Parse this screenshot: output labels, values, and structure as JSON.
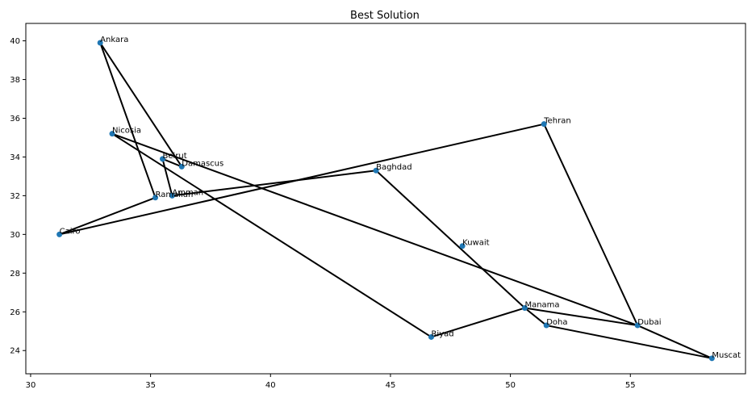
{
  "chart_data": {
    "type": "scatter",
    "title": "Best Solution",
    "xlabel": "",
    "ylabel": "",
    "xlim": [
      29.8,
      59.8
    ],
    "ylim": [
      22.8,
      40.9
    ],
    "xticks": [
      30,
      35,
      40,
      45,
      50,
      55
    ],
    "yticks": [
      24,
      26,
      28,
      30,
      32,
      34,
      36,
      38,
      40
    ],
    "grid": false,
    "legend": "none",
    "colors": {
      "point": "#1f77b4",
      "route": "#000000"
    },
    "points": [
      {
        "label": "Ankara",
        "x": 32.9,
        "y": 39.9
      },
      {
        "label": "Nicosia",
        "x": 33.4,
        "y": 35.2
      },
      {
        "label": "Beirut",
        "x": 35.5,
        "y": 33.9
      },
      {
        "label": "Damascus",
        "x": 36.3,
        "y": 33.5
      },
      {
        "label": "Baghdad",
        "x": 44.4,
        "y": 33.3
      },
      {
        "label": "Tehran",
        "x": 51.4,
        "y": 35.7
      },
      {
        "label": "Amman",
        "x": 35.9,
        "y": 32.0
      },
      {
        "label": "Ramallah",
        "x": 35.2,
        "y": 31.9
      },
      {
        "label": "Cairo",
        "x": 31.2,
        "y": 30.0
      },
      {
        "label": "Kuwait",
        "x": 48.0,
        "y": 29.4
      },
      {
        "label": "Manama",
        "x": 50.6,
        "y": 26.2
      },
      {
        "label": "Doha",
        "x": 51.5,
        "y": 25.3
      },
      {
        "label": "Dubai",
        "x": 55.3,
        "y": 25.3
      },
      {
        "label": "Muscat",
        "x": 58.4,
        "y": 23.6
      },
      {
        "label": "Riyad",
        "x": 46.7,
        "y": 24.7
      }
    ],
    "route": [
      "Ankara",
      "Damascus",
      "Beirut",
      "Amman",
      "Baghdad",
      "Manama",
      "Dubai",
      "Nicosia",
      "Riyad",
      "Manama",
      "Doha",
      "Muscat",
      "Dubai",
      "Tehran",
      "Cairo",
      "Ramallah",
      "Ankara"
    ]
  }
}
